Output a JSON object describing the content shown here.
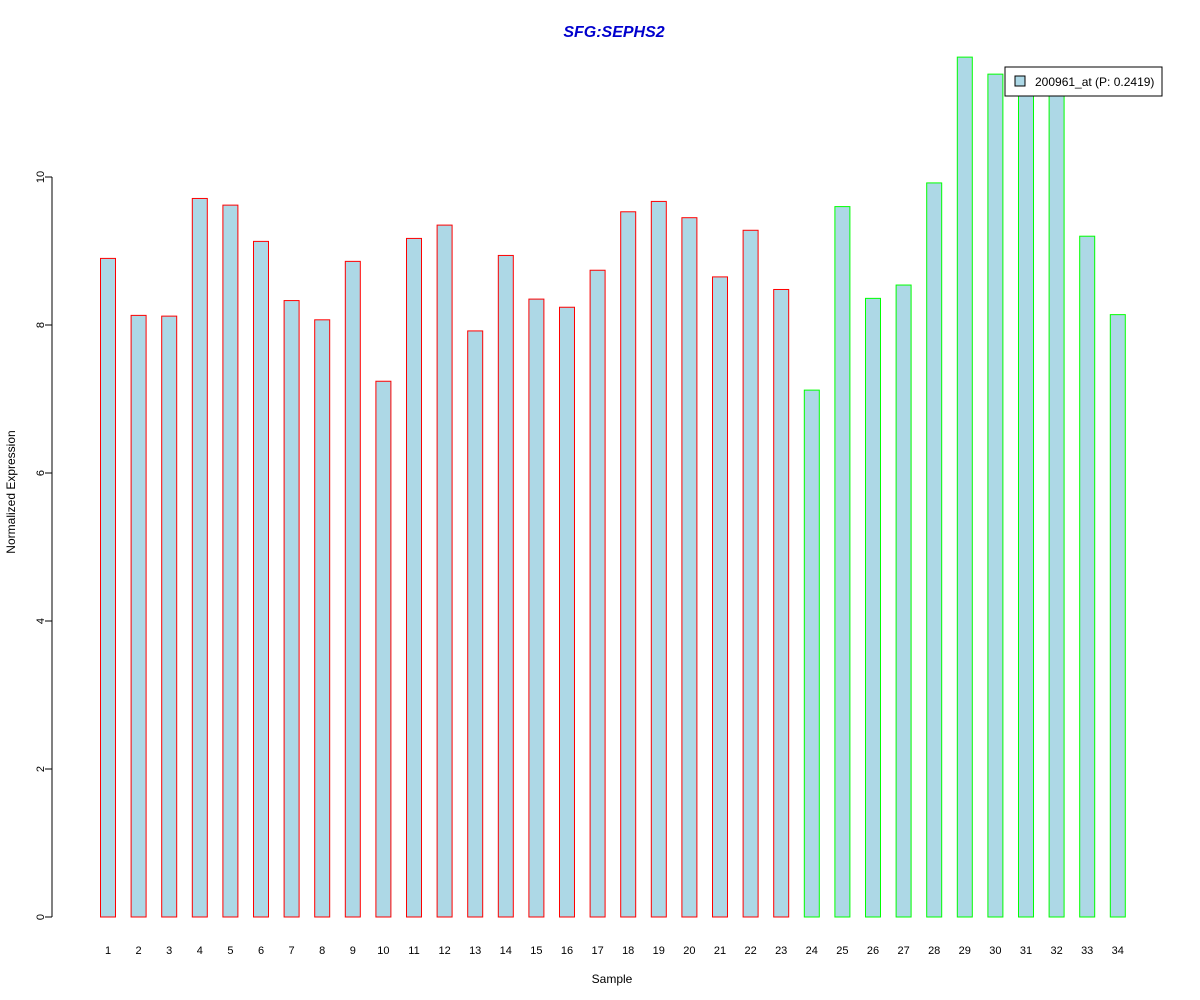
{
  "chart_data": {
    "type": "bar",
    "title": "SFG:SEPHS2",
    "xlabel": "Sample",
    "ylabel": "Normalized Expression",
    "ylim": [
      0,
      12
    ],
    "yticks": [
      0,
      2,
      4,
      6,
      8,
      10
    ],
    "categories": [
      "1",
      "2",
      "3",
      "4",
      "5",
      "6",
      "7",
      "8",
      "9",
      "10",
      "11",
      "12",
      "13",
      "14",
      "15",
      "16",
      "17",
      "18",
      "19",
      "20",
      "21",
      "22",
      "23",
      "24",
      "25",
      "26",
      "27",
      "28",
      "29",
      "30",
      "31",
      "32",
      "33",
      "34"
    ],
    "series": [
      {
        "name": "200961_at (P: 0.2419)",
        "values": [
          8.9,
          8.13,
          8.12,
          9.71,
          9.62,
          9.13,
          8.33,
          8.07,
          8.86,
          7.24,
          9.17,
          9.35,
          7.92,
          8.94,
          8.35,
          8.24,
          8.74,
          9.53,
          9.67,
          9.45,
          8.65,
          9.28,
          8.48,
          7.12,
          9.6,
          8.36,
          8.54,
          9.92,
          11.62,
          11.39,
          11.2,
          11.2,
          9.2,
          8.14
        ],
        "groups": [
          1,
          1,
          1,
          1,
          1,
          1,
          1,
          1,
          1,
          1,
          1,
          1,
          1,
          1,
          1,
          1,
          1,
          1,
          1,
          1,
          1,
          1,
          1,
          2,
          2,
          2,
          2,
          2,
          2,
          2,
          2,
          2,
          2,
          2
        ]
      }
    ],
    "grid": false,
    "legend_position": "top-right",
    "colors": {
      "bar_fill": "#add8e6",
      "group1_border": "#ff0000",
      "group2_border": "#00ff00",
      "title": "#0000cd",
      "axis": "#000000"
    }
  }
}
